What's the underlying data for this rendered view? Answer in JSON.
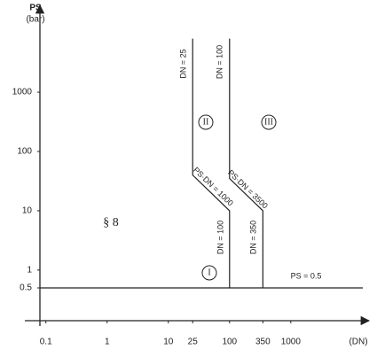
{
  "chart_data": {
    "type": "line",
    "x_label": "(DN)",
    "y_label": "PS",
    "y_unit": "(bar)",
    "log_x": true,
    "log_y": true,
    "xlim": [
      0.08,
      15000
    ],
    "ylim": [
      0.15,
      20000
    ],
    "xticks": [
      0.1,
      1,
      10,
      25,
      100,
      350,
      1000
    ],
    "yticks": [
      0.5,
      1,
      10,
      100,
      1000
    ],
    "series": [
      {
        "color": "#222222",
        "x": [
          25,
          25,
          100,
          100
        ],
        "values": [
          8000,
          40,
          10,
          0.5
        ]
      },
      {
        "color": "#222222",
        "x": [
          100,
          100,
          350,
          350
        ],
        "values": [
          8000,
          35,
          10,
          0.5
        ]
      },
      {
        "color": "#222222",
        "x": [
          0.08,
          15000
        ],
        "values": [
          0.5,
          0.5
        ]
      }
    ],
    "annotations": [
      "DN = 25",
      "DN = 100",
      "II",
      "III",
      "PS·DN = 1000",
      "PS·DN = 3500",
      "DN = 100",
      "DN = 350",
      "I",
      "§ 8",
      "PS = 0.5"
    ]
  }
}
